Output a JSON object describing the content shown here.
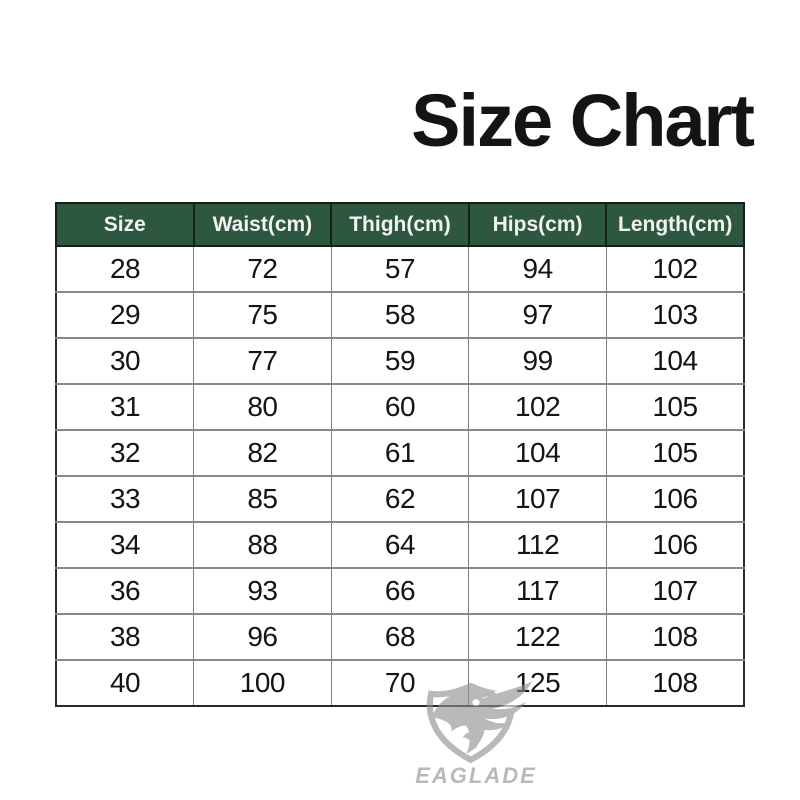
{
  "title": "Size Chart",
  "chart_data": {
    "type": "table",
    "title": "Size Chart",
    "columns": [
      "Size",
      "Waist(cm)",
      "Thigh(cm)",
      "Hips(cm)",
      "Length(cm)"
    ],
    "rows": [
      [
        "28",
        "72",
        "57",
        "94",
        "102"
      ],
      [
        "29",
        "75",
        "58",
        "97",
        "103"
      ],
      [
        "30",
        "77",
        "59",
        "99",
        "104"
      ],
      [
        "31",
        "80",
        "60",
        "102",
        "105"
      ],
      [
        "32",
        "82",
        "61",
        "104",
        "105"
      ],
      [
        "33",
        "85",
        "62",
        "107",
        "106"
      ],
      [
        "34",
        "88",
        "64",
        "112",
        "106"
      ],
      [
        "36",
        "93",
        "66",
        "117",
        "107"
      ],
      [
        "38",
        "96",
        "68",
        "122",
        "108"
      ],
      [
        "40",
        "100",
        "70",
        "125",
        "108"
      ]
    ]
  },
  "watermark": {
    "brand": "EAGLADE",
    "icon": "eagle-shield-icon",
    "color": "#b0b0b0"
  },
  "colors": {
    "background": "#ffffff",
    "title_color": "#141414",
    "header_bg": "#2e5740",
    "header_text": "#f2f2f2",
    "body_text": "#141414",
    "inner_border": "#7d7d7d",
    "outer_border": "#2a2a2a"
  }
}
